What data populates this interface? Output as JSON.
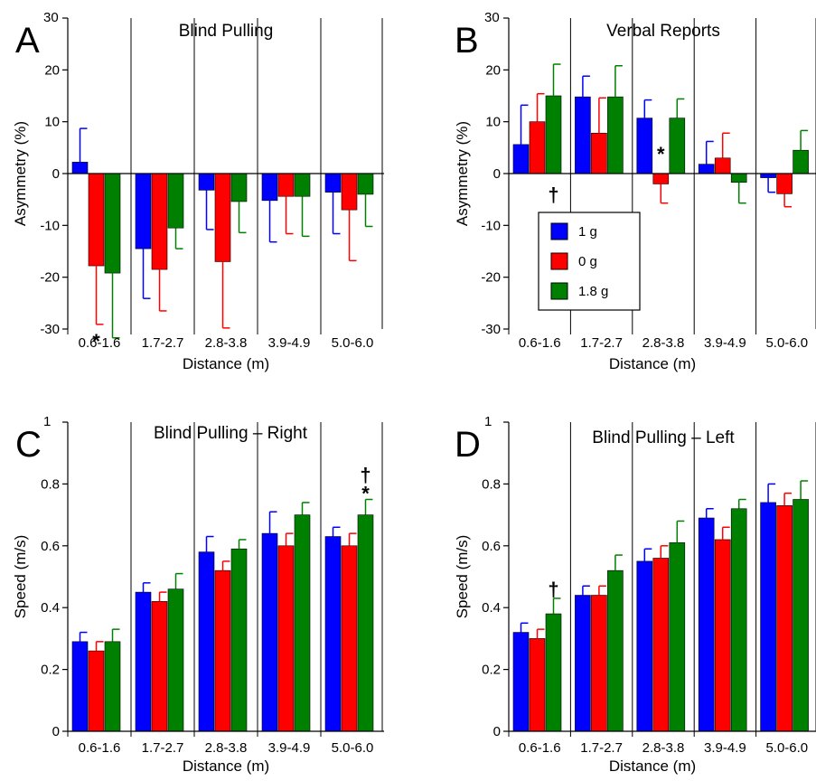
{
  "colors": {
    "1 g": "#0000ff",
    "0 g": "#ff0000",
    "1.8 g": "#008000",
    "axis": "#000000"
  },
  "legend": {
    "entries": [
      "1 g",
      "0 g",
      "1.8 g"
    ]
  },
  "chart_data": [
    {
      "id": "A",
      "type": "bar",
      "title": "Blind Pulling",
      "xlabel": "Distance (m)",
      "ylabel": "Asymmetry (%)",
      "ylim": [
        -30,
        30
      ],
      "yticks": [
        -30,
        -20,
        -10,
        0,
        10,
        20,
        30
      ],
      "ytick_labels": [
        "-30",
        "-20",
        "-10",
        "0",
        "10",
        "20",
        "30"
      ],
      "categories": [
        "0.6-1.6",
        "1.7-2.7",
        "2.8-3.8",
        "3.9-4.9",
        "5.0-6.0"
      ],
      "series": [
        {
          "name": "1 g",
          "values": [
            2.2,
            -14.5,
            -3.2,
            -5.2,
            -3.6
          ],
          "err": [
            6.5,
            9.6,
            7.6,
            8.0,
            8.0
          ]
        },
        {
          "name": "0 g",
          "values": [
            -17.8,
            -18.5,
            -17.0,
            -4.4,
            -7.0
          ],
          "err": [
            11.3,
            8.0,
            12.8,
            7.2,
            9.8
          ]
        },
        {
          "name": "1.8 g",
          "values": [
            -19.2,
            -10.5,
            -5.4,
            -4.4,
            -4.0
          ],
          "err": [
            12.5,
            4.0,
            6.0,
            7.7,
            6.2
          ]
        }
      ],
      "annotations": [
        {
          "text": "*",
          "category": "0.6-1.6",
          "series": "0 g",
          "value": -32.3
        }
      ]
    },
    {
      "id": "B",
      "type": "bar",
      "title": "Verbal Reports",
      "xlabel": "Distance (m)",
      "ylabel": "Asymmetry (%)",
      "ylim": [
        -30,
        30
      ],
      "yticks": [
        -30,
        -20,
        -10,
        0,
        10,
        20,
        30
      ],
      "ytick_labels": [
        "-30",
        "-20",
        "-10",
        "0",
        "10",
        "20",
        "30"
      ],
      "categories": [
        "0.6-1.6",
        "1.7-2.7",
        "2.8-3.8",
        "3.9-4.9",
        "5.0-6.0"
      ],
      "series": [
        {
          "name": "1 g",
          "values": [
            5.6,
            14.8,
            10.7,
            1.8,
            -0.8
          ],
          "err": [
            7.6,
            4.0,
            3.5,
            4.4,
            2.8
          ]
        },
        {
          "name": "0 g",
          "values": [
            10.0,
            7.8,
            -2.0,
            3.0,
            -3.9
          ],
          "err": [
            5.4,
            6.8,
            3.7,
            4.8,
            2.5
          ]
        },
        {
          "name": "1.8 g",
          "values": [
            15.0,
            14.8,
            10.7,
            -1.7,
            4.5
          ],
          "err": [
            6.1,
            6.0,
            3.7,
            4.0,
            3.8
          ]
        }
      ],
      "annotations": [
        {
          "text": "*",
          "category": "2.8-3.8",
          "series": "0 g",
          "value": 3.8
        },
        {
          "text": "†",
          "category": "0.6-1.6",
          "series": "1.8 g",
          "value": -4.0
        }
      ],
      "legend_position": "lower-left"
    },
    {
      "id": "C",
      "type": "bar",
      "title": "Blind Pulling – Right",
      "xlabel": "Distance (m)",
      "ylabel": "Speed (m/s)",
      "ylim": [
        0,
        1
      ],
      "yticks": [
        0,
        0.2,
        0.4,
        0.6,
        0.8,
        1
      ],
      "ytick_labels": [
        "0",
        "0.2",
        "0.4",
        "0.6",
        "0.8",
        "1"
      ],
      "categories": [
        "0.6-1.6",
        "1.7-2.7",
        "2.8-3.8",
        "3.9-4.9",
        "5.0-6.0"
      ],
      "series": [
        {
          "name": "1 g",
          "values": [
            0.29,
            0.45,
            0.58,
            0.64,
            0.63
          ],
          "err": [
            0.03,
            0.03,
            0.05,
            0.07,
            0.03
          ]
        },
        {
          "name": "0 g",
          "values": [
            0.26,
            0.42,
            0.52,
            0.6,
            0.6
          ],
          "err": [
            0.03,
            0.03,
            0.03,
            0.04,
            0.04
          ]
        },
        {
          "name": "1.8 g",
          "values": [
            0.29,
            0.46,
            0.59,
            0.7,
            0.7
          ],
          "err": [
            0.04,
            0.05,
            0.03,
            0.04,
            0.05
          ]
        }
      ],
      "annotations": [
        {
          "text": "*",
          "category": "5.0-6.0",
          "series": "1.8 g",
          "value": 0.77
        },
        {
          "text": "†",
          "category": "5.0-6.0",
          "series": "1.8 g",
          "value": 0.83
        }
      ]
    },
    {
      "id": "D",
      "type": "bar",
      "title": "Blind Pulling – Left",
      "xlabel": "Distance (m)",
      "ylabel": "Speed (m/s)",
      "ylim": [
        0,
        1
      ],
      "yticks": [
        0,
        0.2,
        0.4,
        0.6,
        0.8,
        1
      ],
      "ytick_labels": [
        "0",
        "0.2",
        "0.4",
        "0.6",
        "0.8",
        "1"
      ],
      "categories": [
        "0.6-1.6",
        "1.7-2.7",
        "2.8-3.8",
        "3.9-4.9",
        "5.0-6.0"
      ],
      "series": [
        {
          "name": "1 g",
          "values": [
            0.32,
            0.44,
            0.55,
            0.69,
            0.74
          ],
          "err": [
            0.03,
            0.03,
            0.04,
            0.03,
            0.06
          ]
        },
        {
          "name": "0 g",
          "values": [
            0.3,
            0.44,
            0.56,
            0.62,
            0.73
          ],
          "err": [
            0.03,
            0.03,
            0.04,
            0.04,
            0.04
          ]
        },
        {
          "name": "1.8 g",
          "values": [
            0.38,
            0.52,
            0.61,
            0.72,
            0.75
          ],
          "err": [
            0.05,
            0.05,
            0.07,
            0.03,
            0.06
          ]
        }
      ],
      "annotations": [
        {
          "text": "†",
          "category": "0.6-1.6",
          "series": "1.8 g",
          "value": 0.46
        }
      ]
    }
  ]
}
